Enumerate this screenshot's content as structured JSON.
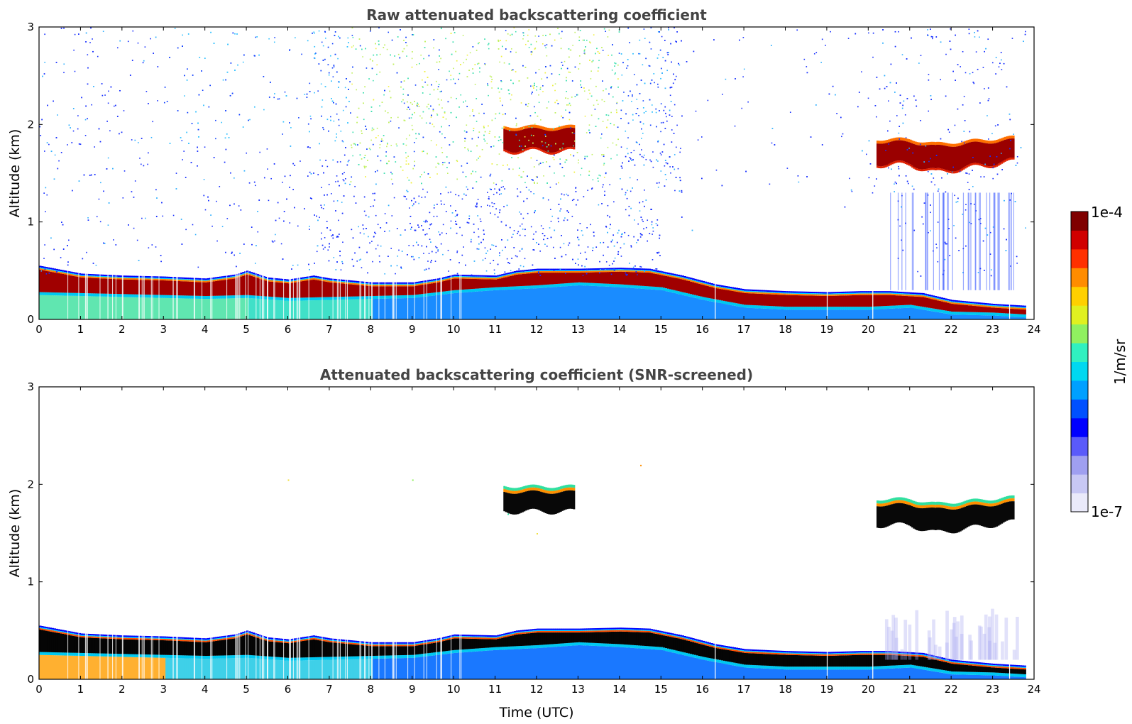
{
  "chart_data": [
    {
      "type": "heatmap",
      "title": "Raw attenuated backscattering coefficient",
      "xlabel": "",
      "ylabel": "Altitude (km)",
      "xlim": [
        0,
        24
      ],
      "ylim": [
        0,
        3
      ],
      "xticks": [
        "0",
        "1",
        "2",
        "3",
        "4",
        "5",
        "6",
        "7",
        "8",
        "9",
        "10",
        "11",
        "12",
        "13",
        "14",
        "15",
        "16",
        "17",
        "18",
        "19",
        "20",
        "21",
        "22",
        "23",
        "24"
      ],
      "yticks": [
        "0",
        "1",
        "2",
        "3"
      ],
      "layer_top_km": [
        [
          0,
          0.55
        ],
        [
          1,
          0.47
        ],
        [
          2,
          0.45
        ],
        [
          3,
          0.44
        ],
        [
          4,
          0.42
        ],
        [
          4.7,
          0.46
        ],
        [
          5,
          0.5
        ],
        [
          5.5,
          0.43
        ],
        [
          6,
          0.41
        ],
        [
          6.6,
          0.45
        ],
        [
          7,
          0.42
        ],
        [
          8,
          0.38
        ],
        [
          9,
          0.38
        ],
        [
          9.6,
          0.42
        ],
        [
          10,
          0.46
        ],
        [
          11,
          0.45
        ],
        [
          11.5,
          0.5
        ],
        [
          12,
          0.52
        ],
        [
          13,
          0.52
        ],
        [
          14,
          0.53
        ],
        [
          14.7,
          0.52
        ],
        [
          15.5,
          0.45
        ],
        [
          16.3,
          0.36
        ],
        [
          17,
          0.31
        ],
        [
          18,
          0.29
        ],
        [
          19,
          0.28
        ],
        [
          19.8,
          0.29
        ],
        [
          20.5,
          0.29
        ],
        [
          21.3,
          0.27
        ],
        [
          22,
          0.2
        ],
        [
          23,
          0.16
        ],
        [
          23.8,
          0.14
        ]
      ],
      "layer_bottom_km": [
        [
          0,
          0.25
        ],
        [
          1,
          0.24
        ],
        [
          2,
          0.23
        ],
        [
          3,
          0.22
        ],
        [
          4,
          0.21
        ],
        [
          5,
          0.22
        ],
        [
          6,
          0.19
        ],
        [
          7,
          0.2
        ],
        [
          8,
          0.21
        ],
        [
          9,
          0.22
        ],
        [
          10,
          0.27
        ],
        [
          11,
          0.3
        ],
        [
          12,
          0.32
        ],
        [
          13,
          0.35
        ],
        [
          14,
          0.33
        ],
        [
          15,
          0.3
        ],
        [
          16,
          0.2
        ],
        [
          17,
          0.12
        ],
        [
          18,
          0.1
        ],
        [
          19,
          0.1
        ],
        [
          20,
          0.1
        ],
        [
          21,
          0.12
        ],
        [
          22,
          0.05
        ],
        [
          23,
          0.04
        ],
        [
          23.8,
          0.02
        ]
      ],
      "cloud_patches": [
        {
          "t0": 11.2,
          "t1": 12.9,
          "bottom_km": 1.72,
          "top_km": 1.98
        },
        {
          "t0": 20.2,
          "t1": 23.5,
          "bottom_km": 1.58,
          "top_km": 1.85
        }
      ],
      "noise_region_t": [
        0,
        23.8
      ],
      "screened": false
    },
    {
      "type": "heatmap",
      "title": "Attenuated backscattering coefficient (SNR-screened)",
      "xlabel": "Time (UTC)",
      "ylabel": "Altitude (km)",
      "xlim": [
        0,
        24
      ],
      "ylim": [
        0,
        3
      ],
      "xticks": [
        "0",
        "1",
        "2",
        "3",
        "4",
        "5",
        "6",
        "7",
        "8",
        "9",
        "10",
        "11",
        "12",
        "13",
        "14",
        "15",
        "16",
        "17",
        "18",
        "19",
        "20",
        "21",
        "22",
        "23",
        "24"
      ],
      "yticks": [
        "0",
        "1",
        "2",
        "3"
      ],
      "screened": true
    }
  ],
  "colorbar": {
    "max_label": "1e-4",
    "min_label": "1e-7",
    "unit_label": "1/m/sr",
    "colors": [
      "#eaeafa",
      "#c8c8f4",
      "#9f9ff0",
      "#5a5afa",
      "#0000ff",
      "#0050ff",
      "#00a0ff",
      "#00d8f0",
      "#30f0c0",
      "#90f060",
      "#e0f020",
      "#ffd000",
      "#ff8c00",
      "#ff3000",
      "#d00000",
      "#7f0000"
    ]
  }
}
